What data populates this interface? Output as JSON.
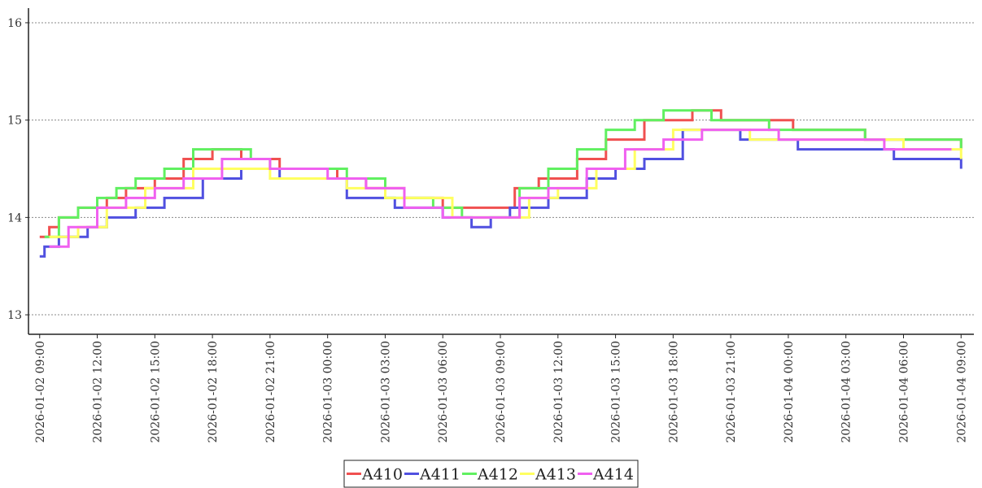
{
  "chart_data": {
    "type": "line",
    "title": "",
    "xlabel": "",
    "ylabel": "",
    "ylim": [
      12.8,
      16.15
    ],
    "xlim": [
      "2026-01-02 08:25",
      "2026-01-04 09:40"
    ],
    "y_ticks": [
      "13",
      "14",
      "15",
      "16"
    ],
    "x_ticks": [
      "2026-01-02 09:00",
      "2026-01-02 12:00",
      "2026-01-02 15:00",
      "2026-01-02 18:00",
      "2026-01-02 21:00",
      "2026-01-03 00:00",
      "2026-01-03 03:00",
      "2026-01-03 06:00",
      "2026-01-03 09:00",
      "2026-01-03 12:00",
      "2026-01-03 15:00",
      "2026-01-03 18:00",
      "2026-01-03 21:00",
      "2026-01-04 00:00",
      "2026-01-04 03:00",
      "2026-01-04 06:00",
      "2026-01-04 09:00"
    ],
    "grid": true,
    "legend_position": "bottom-center",
    "series": [
      {
        "name": "A410",
        "color": "#f05050",
        "x": [
          "2026-01-02 09:00",
          "2026-01-02 09:30",
          "2026-01-02 10:00",
          "2026-01-02 11:00",
          "2026-01-02 12:30",
          "2026-01-02 13:30",
          "2026-01-02 15:00",
          "2026-01-02 16:30",
          "2026-01-02 18:00",
          "2026-01-02 19:30",
          "2026-01-02 21:30",
          "2026-01-03 00:30",
          "2026-01-03 02:00",
          "2026-01-03 04:00",
          "2026-01-03 06:00",
          "2026-01-03 08:00",
          "2026-01-03 09:45",
          "2026-01-03 11:00",
          "2026-01-03 13:00",
          "2026-01-03 14:30",
          "2026-01-03 16:30",
          "2026-01-03 19:00",
          "2026-01-03 20:30",
          "2026-01-04 00:15",
          "2026-01-04 04:00",
          "2026-01-04 09:00"
        ],
        "y": [
          13.8,
          13.9,
          14.0,
          14.1,
          14.2,
          14.3,
          14.4,
          14.6,
          14.7,
          14.6,
          14.5,
          14.4,
          14.3,
          14.2,
          14.1,
          14.1,
          14.3,
          14.4,
          14.6,
          14.8,
          15.0,
          15.1,
          15.0,
          14.9,
          14.8,
          14.7
        ]
      },
      {
        "name": "A411",
        "color": "#5050e0",
        "x": [
          "2026-01-02 09:00",
          "2026-01-02 09:15",
          "2026-01-02 10:00",
          "2026-01-02 11:30",
          "2026-01-02 12:30",
          "2026-01-02 14:00",
          "2026-01-02 15:30",
          "2026-01-02 17:30",
          "2026-01-02 19:30",
          "2026-01-02 21:30",
          "2026-01-03 01:00",
          "2026-01-03 03:30",
          "2026-01-03 06:00",
          "2026-01-03 07:30",
          "2026-01-03 08:30",
          "2026-01-03 09:30",
          "2026-01-03 11:30",
          "2026-01-03 13:30",
          "2026-01-03 15:00",
          "2026-01-03 16:30",
          "2026-01-03 18:30",
          "2026-01-03 21:30",
          "2026-01-04 00:30",
          "2026-01-04 05:30",
          "2026-01-04 09:00"
        ],
        "y": [
          13.6,
          13.7,
          13.8,
          13.9,
          14.0,
          14.1,
          14.2,
          14.4,
          14.5,
          14.4,
          14.2,
          14.1,
          14.0,
          13.9,
          14.0,
          14.1,
          14.2,
          14.4,
          14.5,
          14.6,
          14.9,
          14.8,
          14.7,
          14.6,
          14.5
        ]
      },
      {
        "name": "A412",
        "color": "#60f060",
        "x": [
          "2026-01-02 09:15",
          "2026-01-02 10:00",
          "2026-01-02 11:00",
          "2026-01-02 12:00",
          "2026-01-02 13:00",
          "2026-01-02 14:00",
          "2026-01-02 15:30",
          "2026-01-02 17:00",
          "2026-01-02 20:00",
          "2026-01-02 21:00",
          "2026-01-03 01:00",
          "2026-01-03 03:00",
          "2026-01-03 05:30",
          "2026-01-03 07:00",
          "2026-01-03 10:00",
          "2026-01-03 11:30",
          "2026-01-03 13:00",
          "2026-01-03 14:30",
          "2026-01-03 16:00",
          "2026-01-03 17:30",
          "2026-01-03 20:00",
          "2026-01-03 23:00",
          "2026-01-04 04:00",
          "2026-01-04 09:00"
        ],
        "y": [
          13.8,
          14.0,
          14.1,
          14.2,
          14.3,
          14.4,
          14.5,
          14.7,
          14.6,
          14.5,
          14.4,
          14.2,
          14.1,
          14.0,
          14.3,
          14.5,
          14.7,
          14.9,
          15.0,
          15.1,
          15.0,
          14.9,
          14.8,
          14.7
        ]
      },
      {
        "name": "A413",
        "color": "#ffff60",
        "x": [
          "2026-01-02 09:30",
          "2026-01-02 11:00",
          "2026-01-02 12:30",
          "2026-01-02 14:30",
          "2026-01-02 17:00",
          "2026-01-02 19:30",
          "2026-01-02 21:00",
          "2026-01-03 01:00",
          "2026-01-03 03:00",
          "2026-01-03 06:30",
          "2026-01-03 09:00",
          "2026-01-03 10:30",
          "2026-01-03 12:00",
          "2026-01-03 14:00",
          "2026-01-03 16:00",
          "2026-01-03 18:00",
          "2026-01-03 22:00",
          "2026-01-04 02:00",
          "2026-01-04 06:00",
          "2026-01-04 09:00"
        ],
        "y": [
          13.8,
          13.9,
          14.1,
          14.3,
          14.5,
          14.5,
          14.4,
          14.3,
          14.2,
          14.0,
          14.0,
          14.2,
          14.3,
          14.5,
          14.7,
          14.9,
          14.8,
          14.8,
          14.7,
          14.6
        ]
      },
      {
        "name": "A414",
        "color": "#f060f0",
        "x": [
          "2026-01-02 09:30",
          "2026-01-02 10:30",
          "2026-01-02 12:00",
          "2026-01-02 13:30",
          "2026-01-02 15:00",
          "2026-01-02 16:30",
          "2026-01-02 18:30",
          "2026-01-02 21:00",
          "2026-01-03 00:00",
          "2026-01-03 02:00",
          "2026-01-03 04:00",
          "2026-01-03 06:00",
          "2026-01-03 10:00",
          "2026-01-03 11:30",
          "2026-01-03 13:30",
          "2026-01-03 15:30",
          "2026-01-03 17:30",
          "2026-01-03 19:30",
          "2026-01-03 23:30",
          "2026-01-04 01:00",
          "2026-01-04 05:00",
          "2026-01-04 08:30"
        ],
        "y": [
          13.7,
          13.9,
          14.1,
          14.2,
          14.3,
          14.4,
          14.6,
          14.5,
          14.4,
          14.3,
          14.1,
          14.0,
          14.2,
          14.3,
          14.5,
          14.7,
          14.8,
          14.9,
          14.8,
          14.8,
          14.7,
          14.7
        ]
      }
    ]
  }
}
